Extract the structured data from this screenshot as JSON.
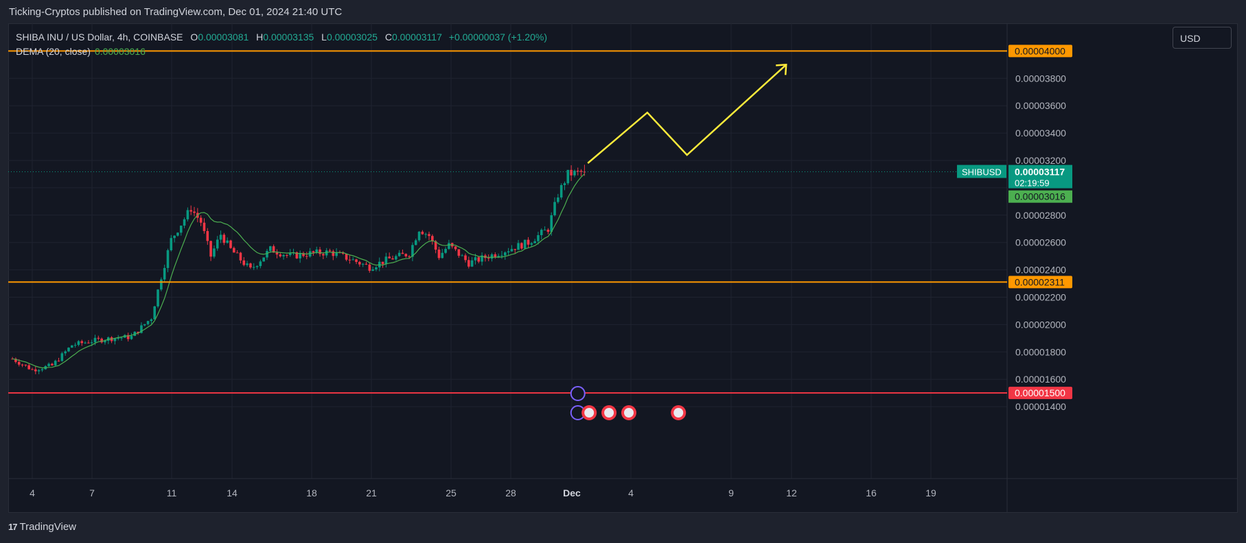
{
  "header": {
    "publisher": "Ticking-Cryptos published on TradingView.com, Dec 01, 2024 21:40 UTC"
  },
  "legend": {
    "symbol_line": "SHIBA INU / US Dollar, 4h, COINBASE",
    "o_label": "O",
    "o_value": "0.00003081",
    "h_label": "H",
    "h_value": "0.00003135",
    "l_label": "L",
    "l_value": "0.00003025",
    "c_label": "C",
    "c_value": "0.00003117",
    "change": "+0.00000037 (+1.20%)",
    "indicator": "DEMA (20, close)",
    "indicator_value": "0.00003016"
  },
  "currency_button": "USD",
  "footer": {
    "brand": "TradingView",
    "logo": "17"
  },
  "price_axis": {
    "ticks": [
      "0.00003800",
      "0.00003600",
      "0.00003400",
      "0.00003200",
      "0.00002800",
      "0.00002600",
      "0.00002400",
      "0.00002200",
      "0.00002000",
      "0.00001800",
      "0.00001600",
      "0.00001400"
    ],
    "symbol_tag": "SHIBUSD",
    "last_price": "0.00003117",
    "countdown": "02:19:59",
    "dema_tag": "0.00003016",
    "levels": [
      {
        "label": "0.00004000",
        "value": 4e-05,
        "color": "#ff9800"
      },
      {
        "label": "0.00002311",
        "value": 2.311e-05,
        "color": "#ff9800"
      },
      {
        "label": "0.00001500",
        "value": 1.5e-05,
        "color": "#f23645"
      }
    ]
  },
  "time_axis": {
    "labels": [
      "4",
      "7",
      "11",
      "14",
      "18",
      "21",
      "25",
      "28",
      "Dec",
      "4",
      "9",
      "12",
      "16",
      "19"
    ]
  },
  "colors": {
    "up": "#089981",
    "down": "#f23645",
    "dema": "#4caf50",
    "projection": "#ffeb3b",
    "background": "#131722"
  },
  "chart_data": {
    "type": "candlestick",
    "series": [
      {
        "name": "SHIBA INU / US Dollar, 4h, COINBASE"
      }
    ],
    "y_unit": "USD",
    "ylim": [
      1.31e-05,
      4.17e-05
    ],
    "close_path": [
      {
        "x": "Nov 03",
        "y": 1.75e-05
      },
      {
        "x": "Nov 04",
        "y": 1.67e-05
      },
      {
        "x": "Nov 05",
        "y": 1.7e-05
      },
      {
        "x": "Nov 06",
        "y": 1.85e-05
      },
      {
        "x": "Nov 07",
        "y": 1.88e-05
      },
      {
        "x": "Nov 08",
        "y": 1.9e-05
      },
      {
        "x": "Nov 09",
        "y": 1.91e-05
      },
      {
        "x": "Nov 10",
        "y": 2.05e-05
      },
      {
        "x": "Nov 10 12:00",
        "y": 2.35e-05
      },
      {
        "x": "Nov 11",
        "y": 2.62e-05
      },
      {
        "x": "Nov 12",
        "y": 2.85e-05
      },
      {
        "x": "Nov 12 12:00",
        "y": 2.75e-05
      },
      {
        "x": "Nov 13",
        "y": 2.5e-05
      },
      {
        "x": "Nov 13 12:00",
        "y": 2.66e-05
      },
      {
        "x": "Nov 14",
        "y": 2.55e-05
      },
      {
        "x": "Nov 15",
        "y": 2.4e-05
      },
      {
        "x": "Nov 16",
        "y": 2.55e-05
      },
      {
        "x": "Nov 17",
        "y": 2.5e-05
      },
      {
        "x": "Nov 18",
        "y": 2.52e-05
      },
      {
        "x": "Nov 19",
        "y": 2.53e-05
      },
      {
        "x": "Nov 20",
        "y": 2.48e-05
      },
      {
        "x": "Nov 21",
        "y": 2.42e-05
      },
      {
        "x": "Nov 22",
        "y": 2.48e-05
      },
      {
        "x": "Nov 23",
        "y": 2.52e-05
      },
      {
        "x": "Nov 23 12:00",
        "y": 2.7e-05
      },
      {
        "x": "Nov 24",
        "y": 2.65e-05
      },
      {
        "x": "Nov 24 12:00",
        "y": 2.5e-05
      },
      {
        "x": "Nov 25",
        "y": 2.58e-05
      },
      {
        "x": "Nov 26",
        "y": 2.45e-05
      },
      {
        "x": "Nov 27",
        "y": 2.5e-05
      },
      {
        "x": "Nov 28",
        "y": 2.55e-05
      },
      {
        "x": "Nov 29",
        "y": 2.6e-05
      },
      {
        "x": "Nov 30",
        "y": 2.7e-05
      },
      {
        "x": "Nov 30 12:00",
        "y": 2.95e-05
      },
      {
        "x": "Dec 01",
        "y": 3.1e-05
      },
      {
        "x": "Dec 01 20:00",
        "y": 3.117e-05
      }
    ],
    "dema_last": 3.016e-05,
    "projection_path": [
      {
        "x": "Dec 02",
        "y": 3.18e-05
      },
      {
        "x": "Dec 05",
        "y": 3.55e-05
      },
      {
        "x": "Dec 07",
        "y": 3.24e-05
      },
      {
        "x": "Dec 12",
        "y": 3.9e-05
      }
    ],
    "horizontal_levels": [
      4e-05,
      2.311e-05,
      1.5e-05
    ]
  }
}
